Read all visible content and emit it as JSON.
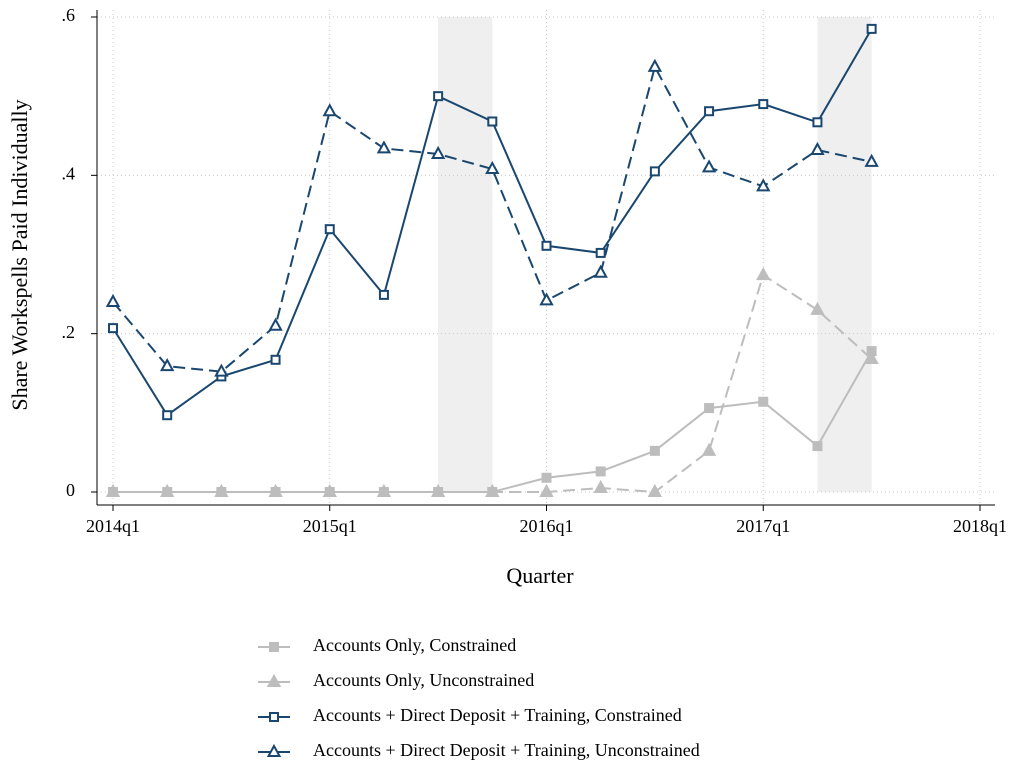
{
  "chart_data": {
    "type": "line",
    "y_label": "Share Workspells Paid Individually",
    "x_label": "Quarter",
    "x": [
      2014,
      2014.25,
      2014.5,
      2014.75,
      2015,
      2015.25,
      2015.5,
      2015.75,
      2016,
      2016.25,
      2016.5,
      2016.75,
      2017,
      2017.25,
      2017.5
    ],
    "xlim": [
      2014,
      2018
    ],
    "xticks": [
      {
        "value": 2014,
        "label": "2014q1"
      },
      {
        "value": 2015,
        "label": "2015q1"
      },
      {
        "value": 2016,
        "label": "2016q1"
      },
      {
        "value": 2017,
        "label": "2017q1"
      },
      {
        "value": 2018,
        "label": "2018q1"
      }
    ],
    "ylim": [
      0,
      0.6
    ],
    "yticks": [
      0,
      {
        "value": 0.2,
        "label": ".2"
      },
      {
        "value": 0.4,
        "label": ".4"
      },
      {
        "value": 0.6,
        "label": ".6"
      }
    ],
    "grid": true,
    "shaded_ranges": [
      [
        2015.5,
        2015.75
      ],
      [
        2017.25,
        2017.5
      ]
    ],
    "shade_color": "#efefef",
    "legend_position": "bottom",
    "series": [
      {
        "name": "Accounts Only, Constrained",
        "color": "#bdbdbd",
        "line_style": "solid",
        "marker": "square",
        "marker_filled": true,
        "values": [
          0,
          0,
          0,
          0,
          0,
          0,
          0,
          0,
          0.018,
          0.026,
          0.052,
          0.106,
          0.114,
          0.058,
          0.178
        ]
      },
      {
        "name": "Accounts Only, Unconstrained",
        "color": "#bdbdbd",
        "line_style": "dashed",
        "marker": "triangle",
        "marker_filled": true,
        "values": [
          0,
          0,
          0,
          0,
          0,
          0,
          0,
          0,
          0,
          0.005,
          0,
          0.052,
          0.274,
          0.23,
          0.168
        ]
      },
      {
        "name": "Accounts + Direct Deposit + Training, Constrained",
        "color": "#1a476f",
        "line_style": "solid",
        "marker": "square",
        "marker_filled": false,
        "values": [
          0.207,
          0.097,
          0.146,
          0.167,
          0.332,
          0.249,
          0.5,
          0.468,
          0.311,
          0.302,
          0.405,
          0.481,
          0.49,
          0.467,
          0.585
        ]
      },
      {
        "name": "Accounts + Direct Deposit + Training, Unconstrained",
        "color": "#1a476f",
        "line_style": "dashed",
        "marker": "triangle",
        "marker_filled": false,
        "values": [
          0.24,
          0.159,
          0.152,
          0.21,
          0.481,
          0.434,
          0.427,
          0.408,
          0.242,
          0.277,
          0.537,
          0.41,
          0.386,
          0.432,
          0.417
        ]
      }
    ]
  }
}
